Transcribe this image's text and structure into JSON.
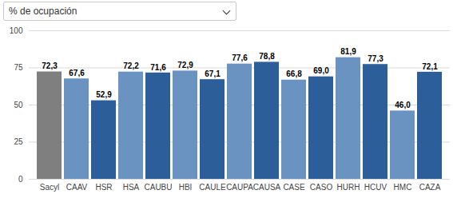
{
  "chart_data": {
    "type": "bar",
    "title": "% de ocupación",
    "categories": [
      "Sacyl",
      "CAAV",
      "HSR",
      "HSA",
      "CAUBU",
      "HBI",
      "CAULE",
      "CAUPA",
      "CAUSA",
      "CASE",
      "CASO",
      "HURH",
      "HCUV",
      "HMC",
      "CAZA"
    ],
    "values": [
      72.3,
      67.6,
      52.9,
      72.2,
      71.6,
      72.9,
      67.1,
      77.6,
      78.8,
      66.8,
      69.0,
      81.9,
      77.3,
      46.0,
      72.1
    ],
    "value_labels": [
      "72,3",
      "67,6",
      "52,9",
      "72,2",
      "71,6",
      "72,9",
      "67,1",
      "77,6",
      "78,8",
      "66,8",
      "69,0",
      "81,9",
      "77,3",
      "46,0",
      "72,1"
    ],
    "colors": [
      "#7f7f7f",
      "#6a93c2",
      "#2c5f9a",
      "#6a93c2",
      "#2c5f9a",
      "#6a93c2",
      "#2c5f9a",
      "#6a93c2",
      "#2c5f9a",
      "#6a93c2",
      "#2c5f9a",
      "#6a93c2",
      "#2c5f9a",
      "#6a93c2",
      "#2c5f9a"
    ],
    "ylim": [
      0,
      100
    ],
    "yticks": [
      0,
      25,
      50,
      75,
      100
    ],
    "grid": true,
    "data_labels": true
  }
}
